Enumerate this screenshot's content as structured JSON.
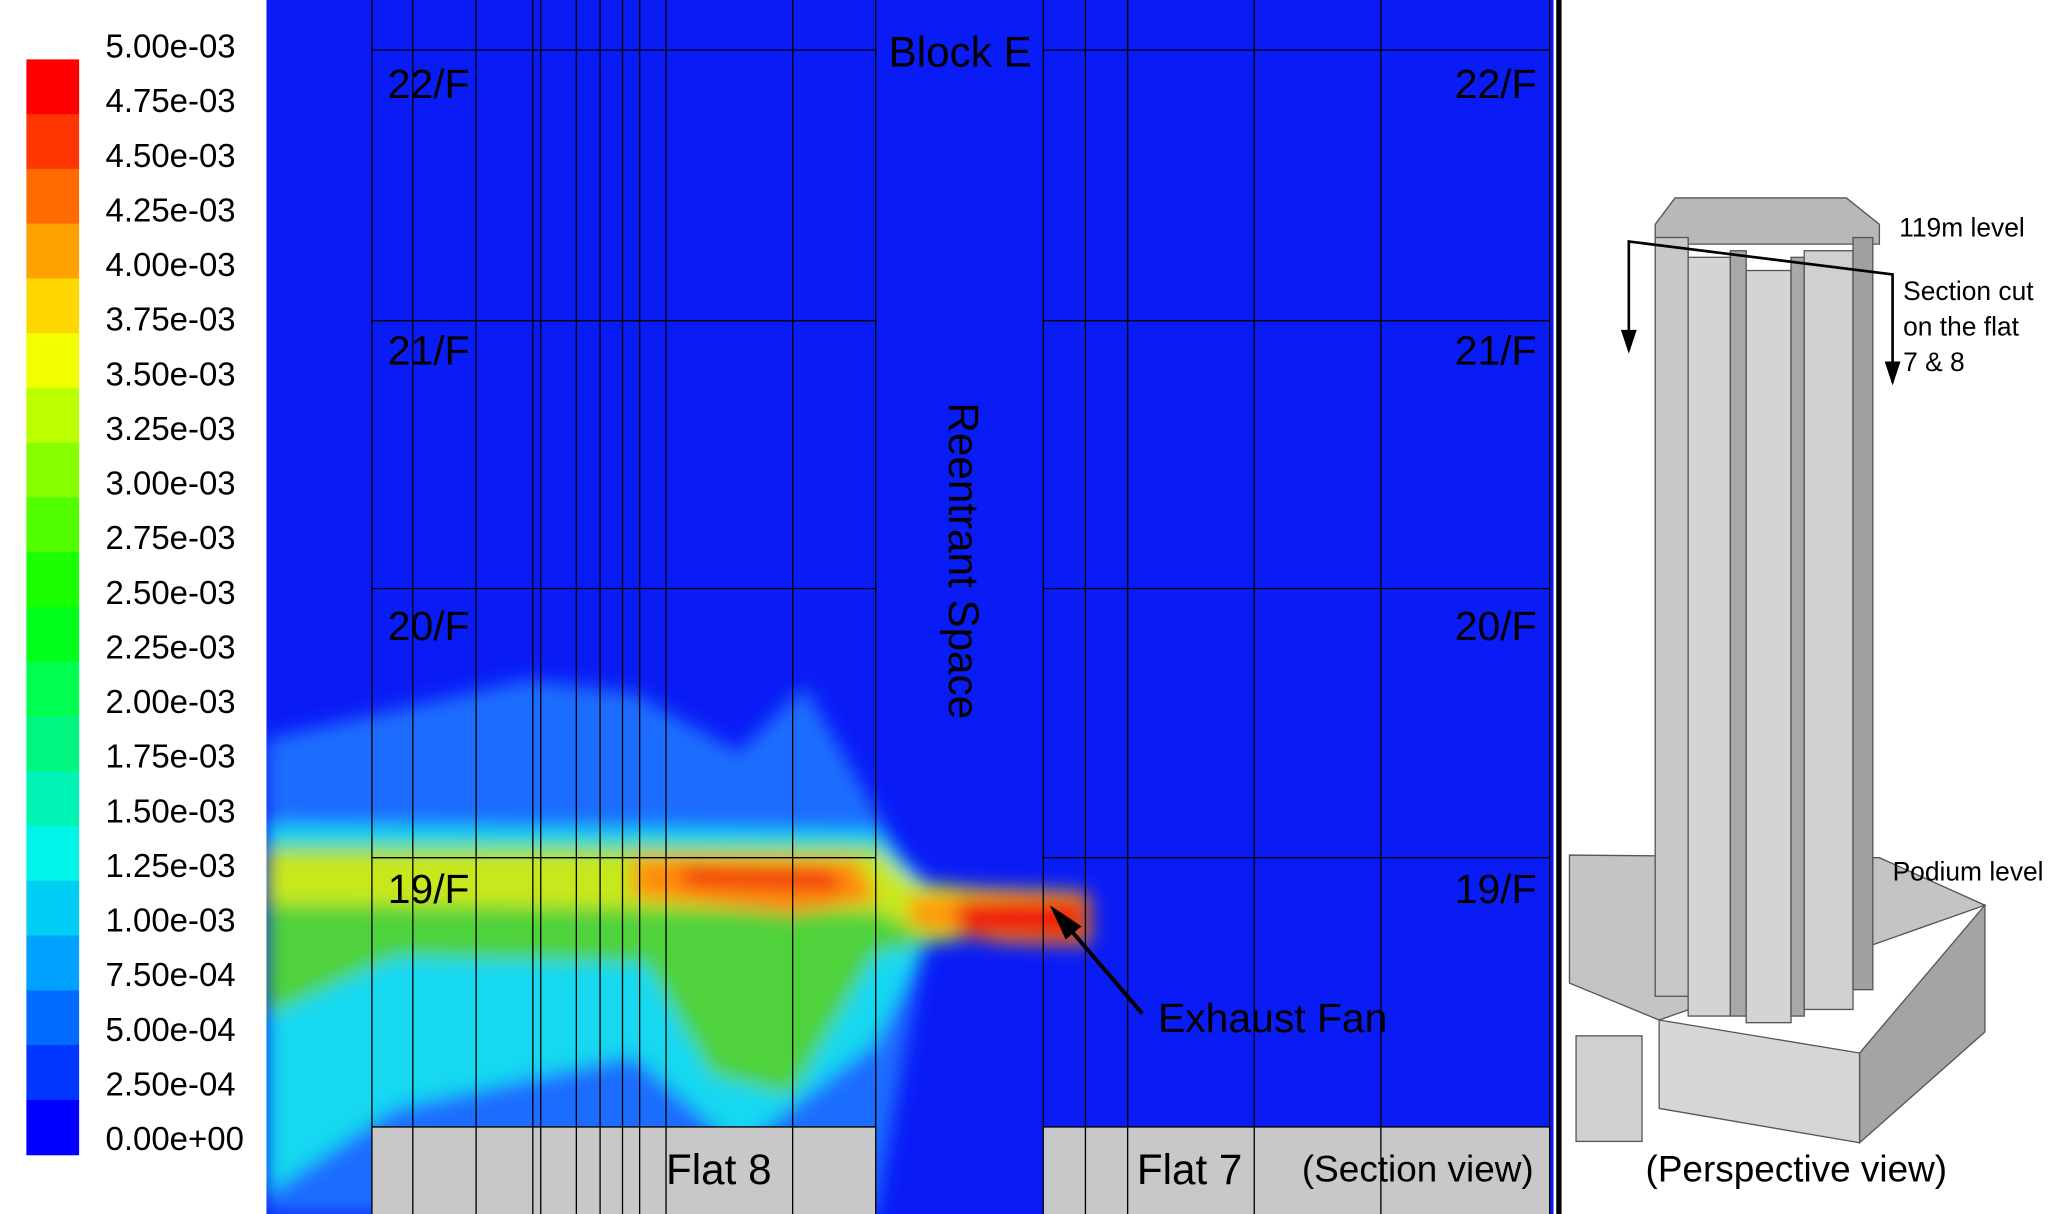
{
  "colorbar": {
    "labels": [
      "5.00e-03",
      "4.75e-03",
      "4.50e-03",
      "4.25e-03",
      "4.00e-03",
      "3.75e-03",
      "3.50e-03",
      "3.25e-03",
      "3.00e-03",
      "2.75e-03",
      "2.50e-03",
      "2.25e-03",
      "2.00e-03",
      "1.75e-03",
      "1.50e-03",
      "1.25e-03",
      "1.00e-03",
      "7.50e-04",
      "5.00e-04",
      "2.50e-04",
      "0.00e+00"
    ]
  },
  "section": {
    "block": "Block E",
    "reentrant": "Reentrant Space",
    "floors_left": [
      "22/F",
      "21/F",
      "20/F",
      "19/F"
    ],
    "floors_right": [
      "22/F",
      "21/F",
      "20/F",
      "19/F"
    ],
    "flats": [
      "Flat 8",
      "Flat 7"
    ],
    "view": "(Section view)",
    "annotation": "Exhaust Fan"
  },
  "perspective": {
    "top": "119m level",
    "section_cut": [
      "Section cut",
      "on the flat",
      "7 & 8"
    ],
    "podium": "Podium level",
    "view": "(Perspective view)"
  }
}
